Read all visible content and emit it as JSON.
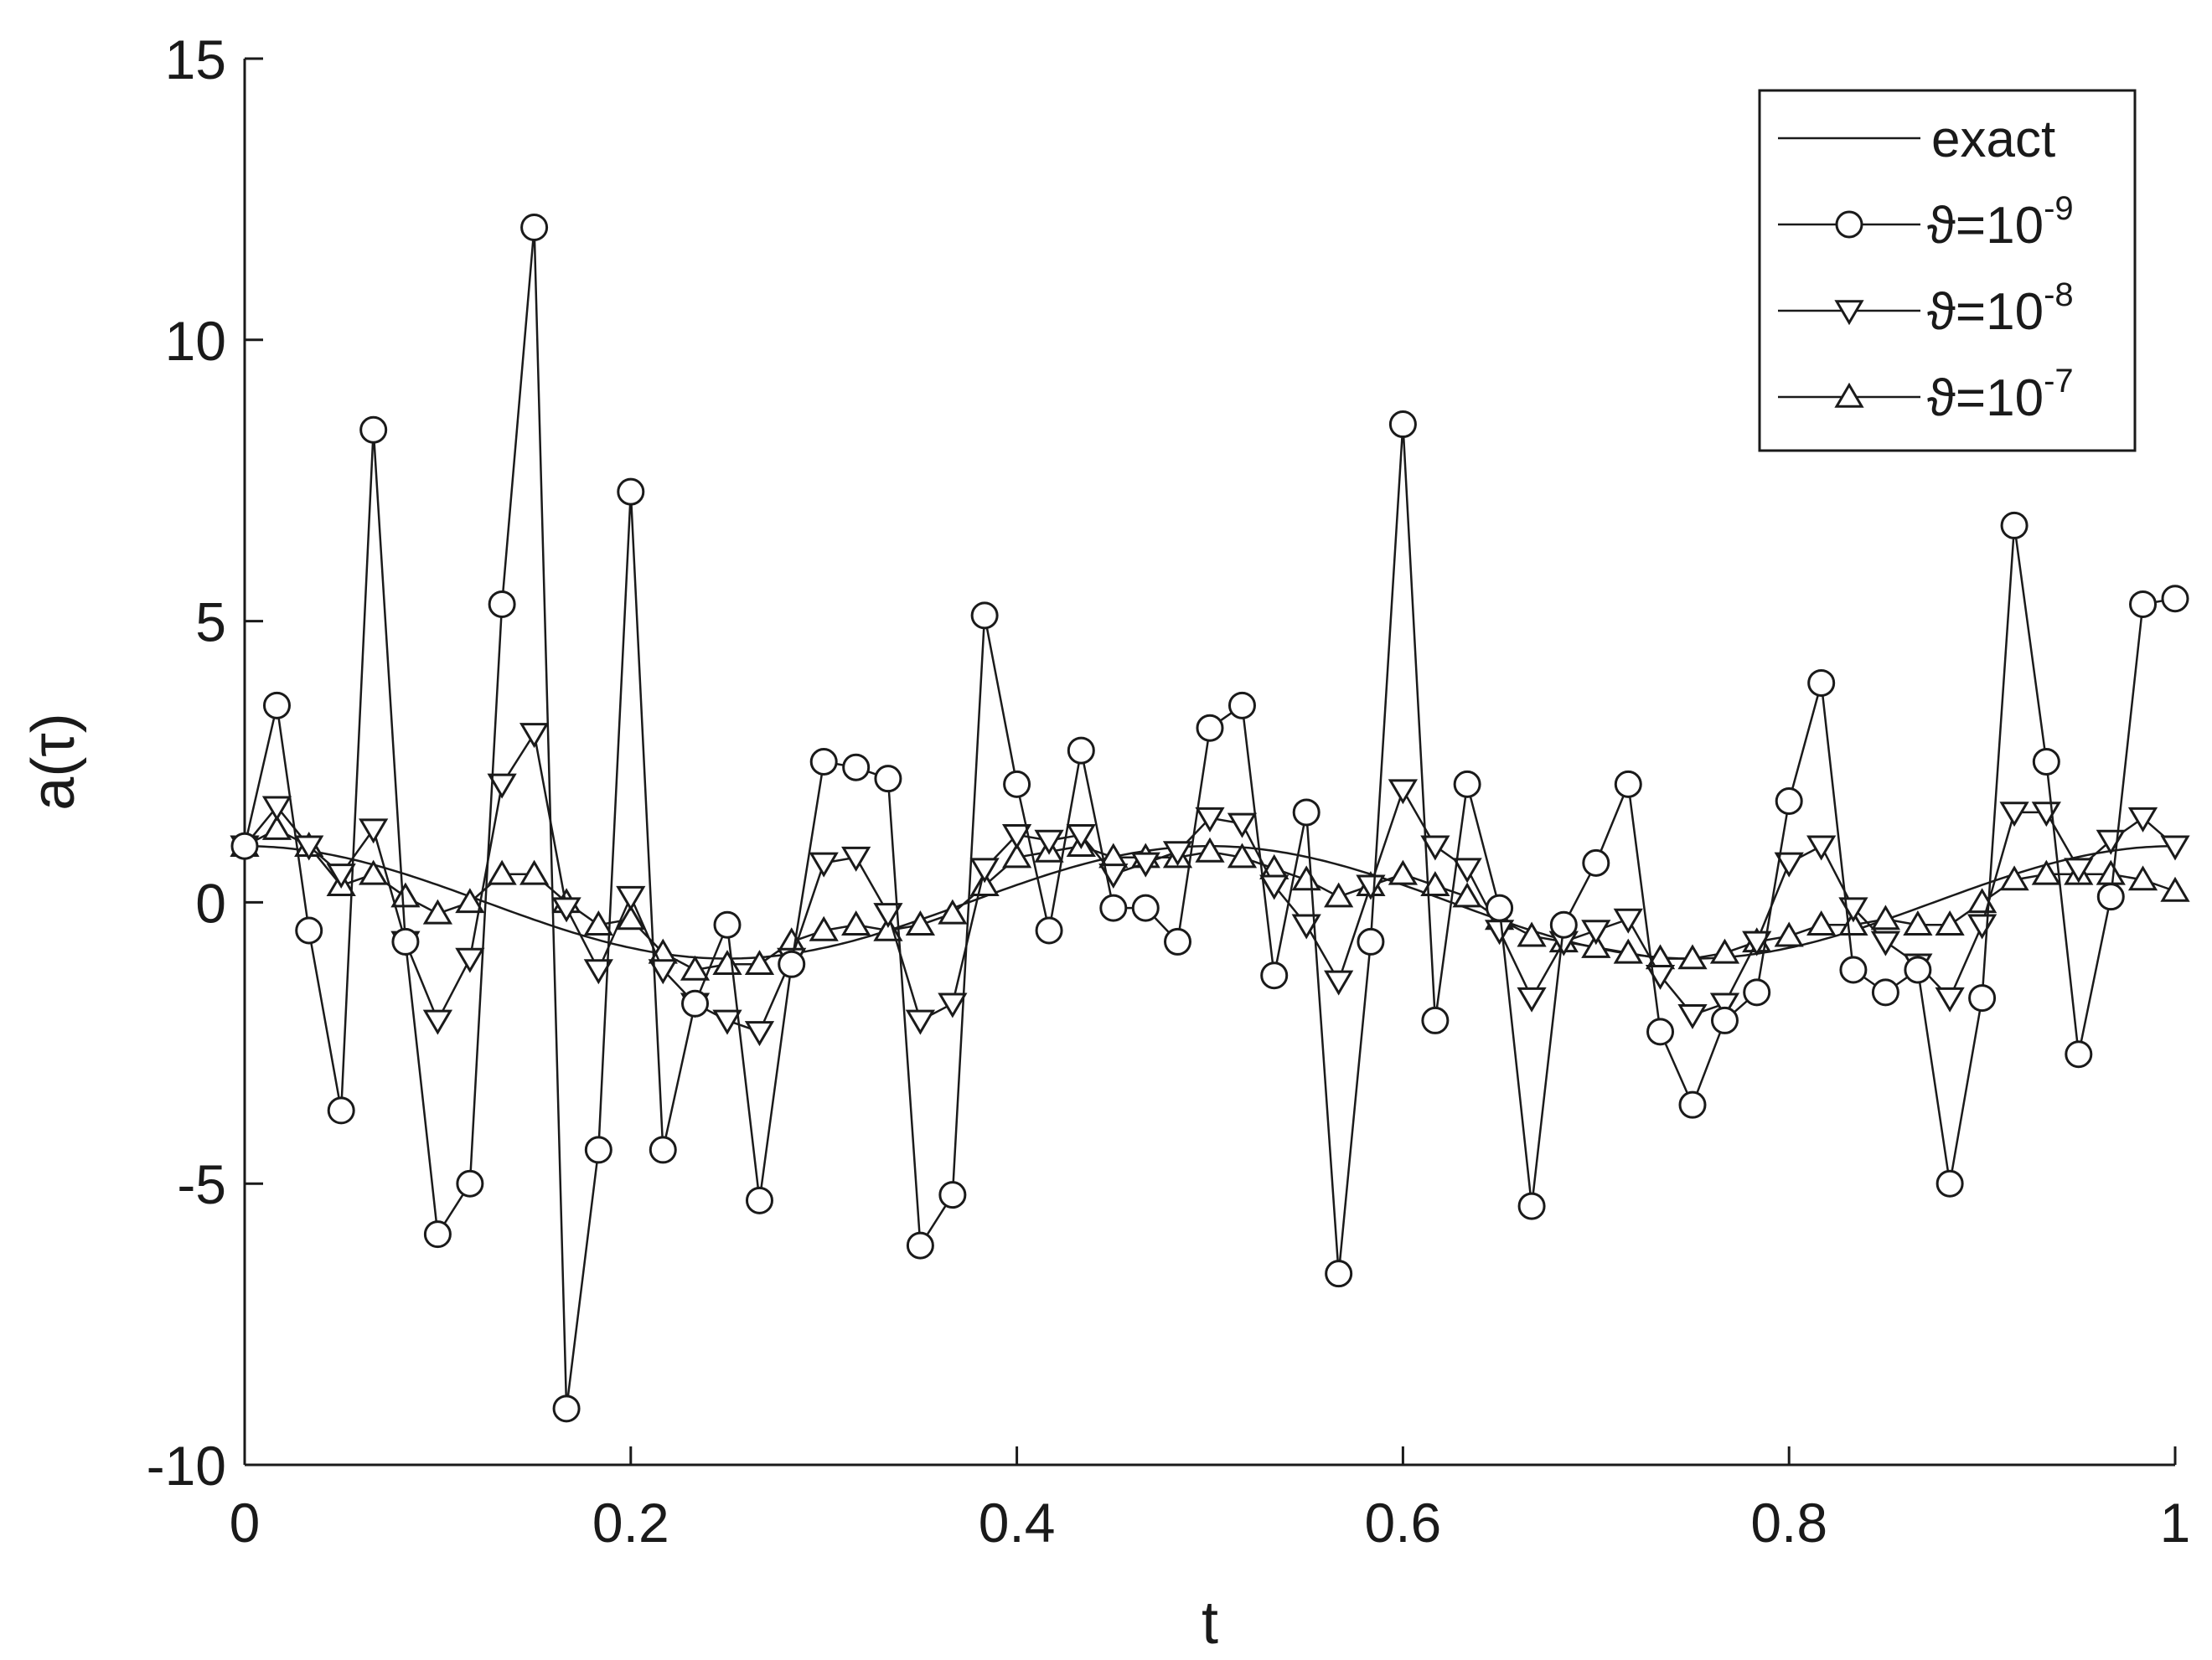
{
  "chart_data": {
    "type": "line",
    "title": "",
    "xlabel": "t",
    "ylabel": "a(τ)",
    "xlim": [
      0,
      1
    ],
    "ylim": [
      -10,
      15
    ],
    "xticks": [
      0,
      0.2,
      0.4,
      0.6,
      0.8,
      1
    ],
    "xtick_labels": [
      "0",
      "0.2",
      "0.4",
      "0.6",
      "0.8",
      "1"
    ],
    "yticks": [
      -10,
      -5,
      0,
      5,
      10,
      15
    ],
    "ytick_labels": [
      "-10",
      "-5",
      "0",
      "5",
      "10",
      "15"
    ],
    "grid": false,
    "legend_position": "top-right",
    "colors": {
      "line": "#1a1a1a",
      "background": "#ffffff"
    },
    "exact": {
      "name": "exact",
      "formula": "cos(4πt)",
      "marker": "none"
    },
    "x": [
      0,
      0.0167,
      0.0333,
      0.05,
      0.0667,
      0.0833,
      0.1,
      0.1167,
      0.1333,
      0.15,
      0.1667,
      0.1833,
      0.2,
      0.2167,
      0.2333,
      0.25,
      0.2667,
      0.2833,
      0.3,
      0.3167,
      0.3333,
      0.35,
      0.3667,
      0.3833,
      0.4,
      0.4167,
      0.4333,
      0.45,
      0.4667,
      0.4833,
      0.5,
      0.5167,
      0.5333,
      0.55,
      0.5667,
      0.5833,
      0.6,
      0.6167,
      0.6333,
      0.65,
      0.6667,
      0.6833,
      0.7,
      0.7167,
      0.7333,
      0.75,
      0.7667,
      0.7833,
      0.8,
      0.8167,
      0.8333,
      0.85,
      0.8667,
      0.8833,
      0.9,
      0.9167,
      0.9333,
      0.95,
      0.9667,
      0.9833,
      1
    ],
    "series": [
      {
        "name_prefix": "ϑ=10",
        "name_exponent": "-9",
        "marker": "circle",
        "values": [
          1.0,
          3.5,
          -0.5,
          -3.7,
          8.4,
          -0.7,
          -5.9,
          -5.0,
          5.3,
          12.0,
          -9.0,
          -4.4,
          7.3,
          -4.4,
          -1.8,
          -0.4,
          -5.3,
          -1.1,
          2.5,
          2.4,
          2.2,
          -6.1,
          -5.2,
          5.1,
          2.1,
          -0.5,
          2.7,
          -0.1,
          -0.1,
          -0.7,
          3.1,
          3.5,
          -1.3,
          1.6,
          -6.6,
          -0.7,
          8.5,
          -2.1,
          2.1,
          -0.1,
          -5.4,
          -0.4,
          0.7,
          2.1,
          -2.3,
          -3.6,
          -2.1,
          -1.6,
          1.8,
          3.9,
          -1.2,
          -1.6,
          -1.2,
          -5.0,
          -1.7,
          6.7,
          2.5,
          -2.7,
          0.1,
          5.3,
          5.4
        ]
      },
      {
        "name_prefix": "ϑ=10",
        "name_exponent": "-8",
        "marker": "triangle-down",
        "values": [
          1.0,
          1.7,
          1.0,
          0.5,
          1.3,
          -0.7,
          -2.1,
          -1.0,
          2.1,
          3.0,
          -0.1,
          -1.2,
          0.1,
          -1.2,
          -1.8,
          -2.1,
          -2.3,
          -1.0,
          0.7,
          0.8,
          -0.2,
          -2.1,
          -1.8,
          0.6,
          1.2,
          1.1,
          1.2,
          0.5,
          0.7,
          0.9,
          1.5,
          1.4,
          0.3,
          -0.4,
          -1.4,
          0.3,
          2.0,
          1.0,
          0.6,
          -0.5,
          -1.7,
          -0.7,
          -0.5,
          -0.3,
          -1.3,
          -2.0,
          -1.8,
          -0.7,
          0.7,
          1.0,
          -0.1,
          -0.7,
          -1.1,
          -1.7,
          -0.4,
          1.6,
          1.6,
          0.6,
          1.1,
          1.5,
          1.0
        ]
      },
      {
        "name_prefix": "ϑ=10",
        "name_exponent": "-7",
        "marker": "triangle-up",
        "values": [
          1.0,
          1.3,
          1.0,
          0.3,
          0.5,
          0.1,
          -0.2,
          0.0,
          0.5,
          0.5,
          0.0,
          -0.4,
          -0.3,
          -0.9,
          -1.2,
          -1.1,
          -1.1,
          -0.7,
          -0.5,
          -0.4,
          -0.5,
          -0.4,
          -0.2,
          0.3,
          0.8,
          0.9,
          1.0,
          0.8,
          0.8,
          0.8,
          0.9,
          0.8,
          0.6,
          0.4,
          0.1,
          0.3,
          0.5,
          0.3,
          0.1,
          -0.3,
          -0.6,
          -0.7,
          -0.8,
          -0.9,
          -1.0,
          -1.0,
          -0.9,
          -0.7,
          -0.6,
          -0.4,
          -0.4,
          -0.3,
          -0.4,
          -0.4,
          0.0,
          0.4,
          0.5,
          0.5,
          0.5,
          0.4,
          0.2
        ]
      }
    ]
  }
}
